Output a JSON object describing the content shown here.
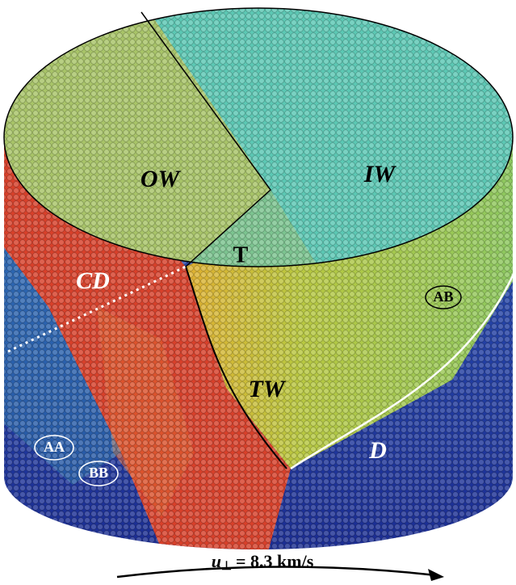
{
  "labels": {
    "ow": "OW",
    "iw": "IW",
    "t": "T",
    "cd": "CD",
    "ab": "AB",
    "tw": "TW",
    "d": "D",
    "aa": "AA",
    "bb": "BB"
  },
  "caption": {
    "symbol": "u",
    "subscript": "⊥",
    "rest": "= 8.3 km/s"
  }
}
